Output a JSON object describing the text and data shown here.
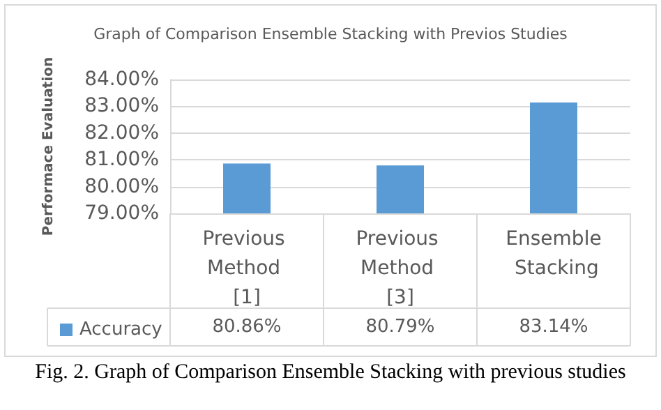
{
  "chart_data": {
    "type": "bar",
    "title": "Graph of Comparison Ensemble Stacking with Previos Studies",
    "ylabel": "Performace Evaluation",
    "categories": [
      "Previous Method [1]",
      "Previous Method [3]",
      "Ensemble Stacking"
    ],
    "series": [
      {
        "name": "Accuracy",
        "color": "#5b9bd5",
        "values": [
          80.86,
          80.79,
          83.14
        ]
      }
    ],
    "ylim": [
      79,
      84
    ],
    "yticks": [
      {
        "value": 79,
        "label": "79.00%"
      },
      {
        "value": 80,
        "label": "80.00%"
      },
      {
        "value": 81,
        "label": "81.00%"
      },
      {
        "value": 82,
        "label": "82.00%"
      },
      {
        "value": 83,
        "label": "83.00%"
      },
      {
        "value": 84,
        "label": "84.00%"
      }
    ],
    "value_labels": [
      "80.86%",
      "80.79%",
      "83.14%"
    ],
    "grid": "y",
    "legend": "bottom left",
    "annotations": [
      "Fig. 2. Graph of Comparison Ensemble Stacking with previous studies"
    ]
  }
}
